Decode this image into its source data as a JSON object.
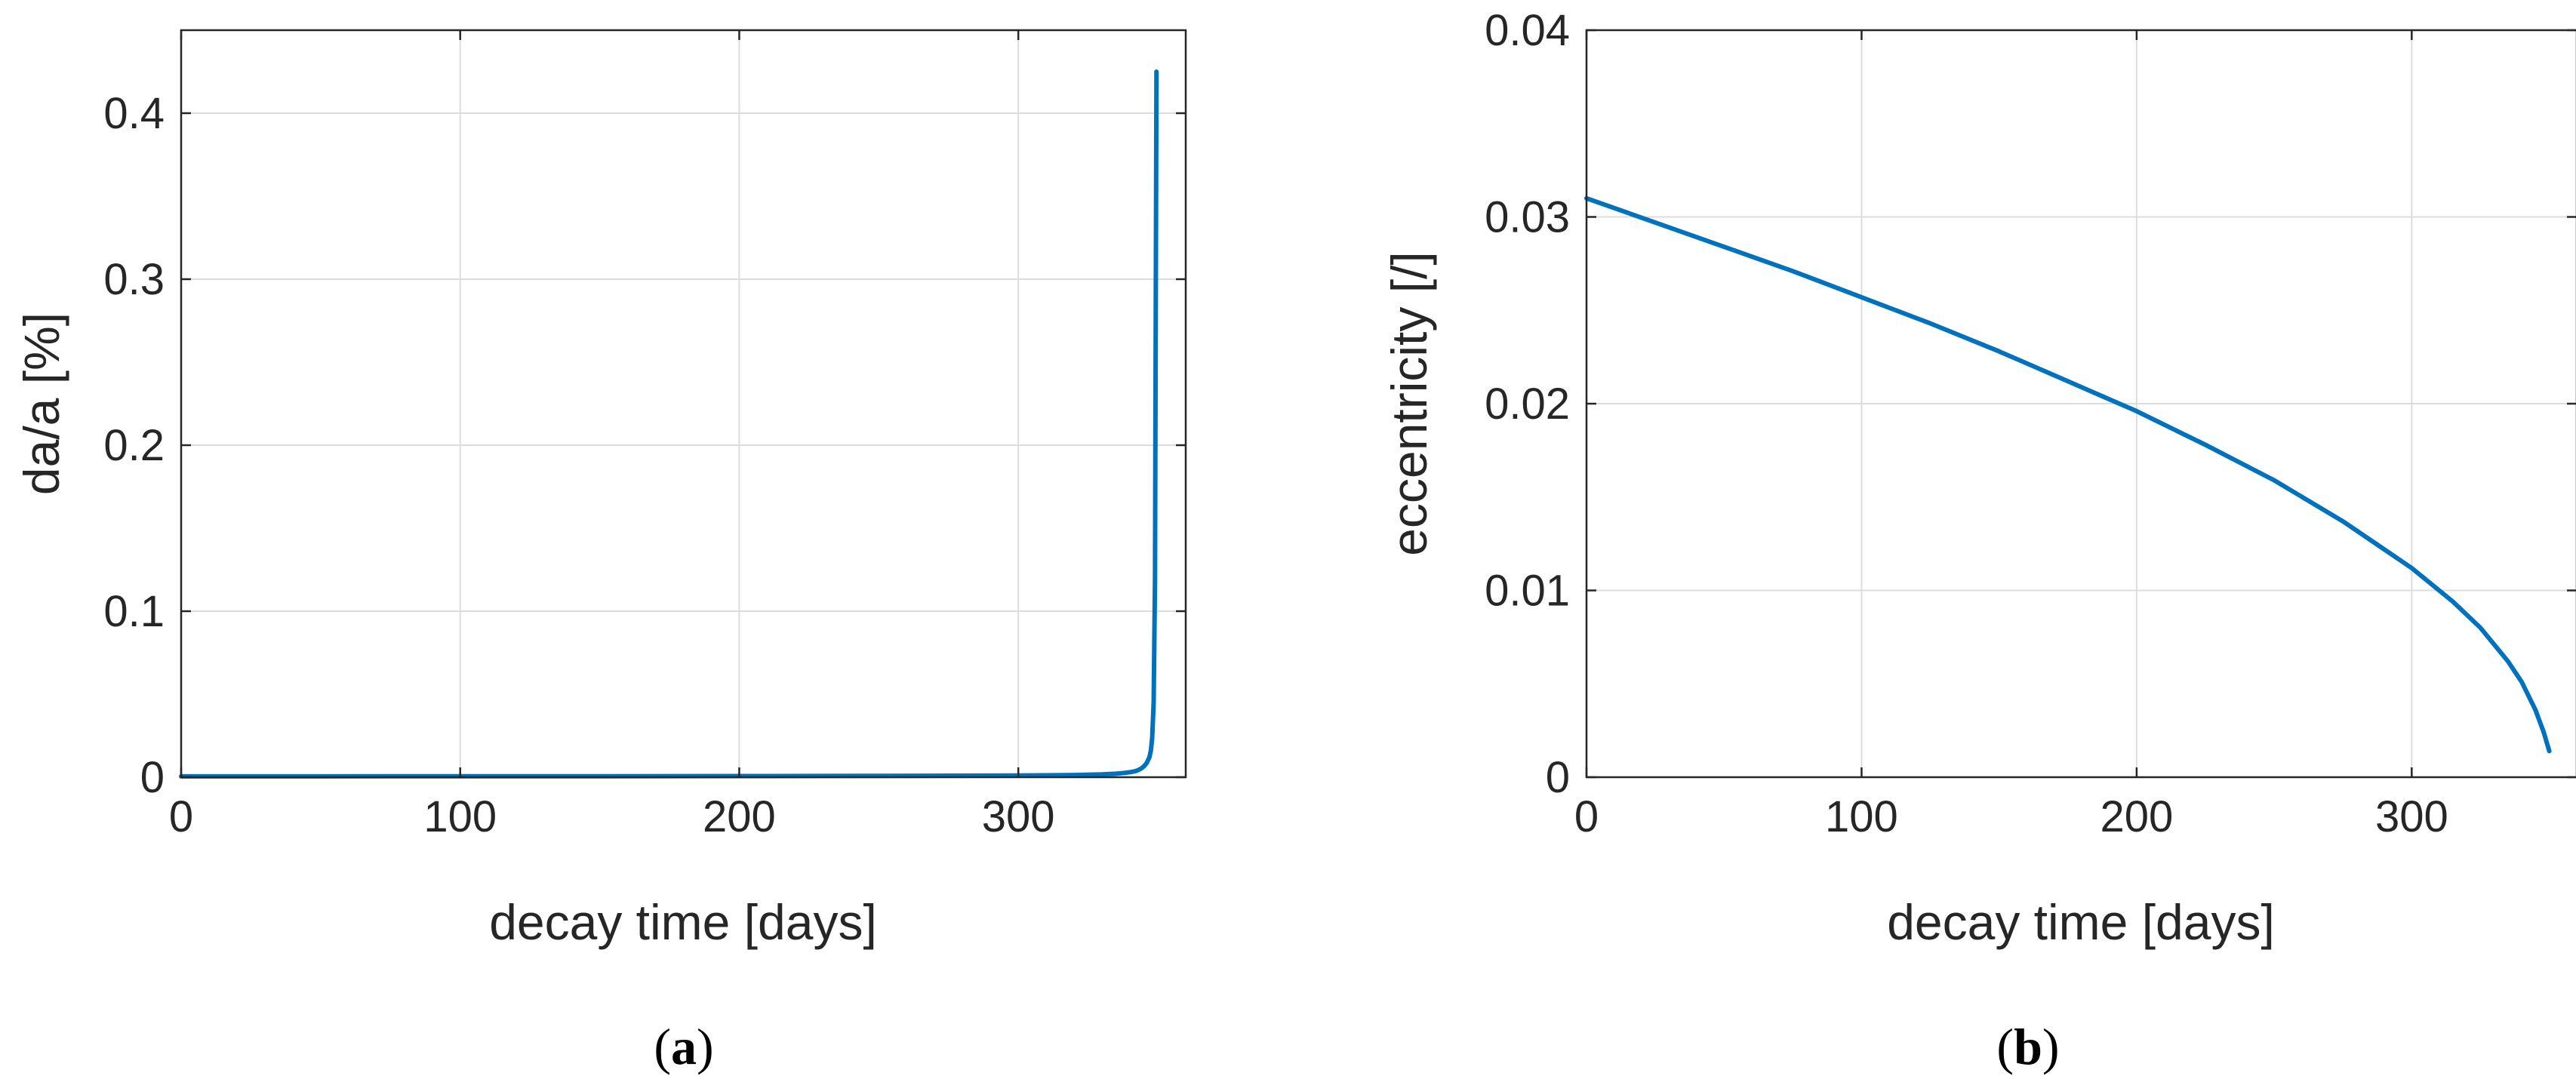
{
  "chart_data": [
    {
      "type": "line",
      "panel_label": "a",
      "xlabel": "decay time [days]",
      "ylabel": "da/a [%]",
      "xlim": [
        0,
        360
      ],
      "ylim": [
        0,
        0.45
      ],
      "xticks": [
        0,
        100,
        200,
        300
      ],
      "yticks": [
        0,
        0.1,
        0.2,
        0.3,
        0.4
      ],
      "xtick_labels": [
        "0",
        "100",
        "200",
        "300"
      ],
      "ytick_labels": [
        "0",
        "0.1",
        "0.2",
        "0.3",
        "0.4"
      ],
      "grid": true,
      "series_color": "#0072BD",
      "x": [
        0,
        50,
        100,
        150,
        200,
        250,
        300,
        320,
        330,
        335,
        338,
        340,
        342,
        343,
        344,
        345,
        346,
        347,
        347.5,
        348,
        348.5,
        349,
        349.3,
        349.5
      ],
      "y": [
        0.0005,
        0.0005,
        0.0006,
        0.0006,
        0.0007,
        0.0008,
        0.001,
        0.0013,
        0.0017,
        0.0021,
        0.0026,
        0.003,
        0.0037,
        0.0043,
        0.0052,
        0.0065,
        0.0085,
        0.012,
        0.016,
        0.024,
        0.045,
        0.12,
        0.3,
        0.425
      ]
    },
    {
      "type": "line",
      "panel_label": "b",
      "xlabel": "decay time [days]",
      "ylabel": "eccentricity [/]",
      "xlim": [
        0,
        360
      ],
      "ylim": [
        0,
        0.04
      ],
      "xticks": [
        0,
        100,
        200,
        300
      ],
      "yticks": [
        0,
        0.01,
        0.02,
        0.03,
        0.04
      ],
      "xtick_labels": [
        "0",
        "100",
        "200",
        "300"
      ],
      "ytick_labels": [
        "0",
        "0.01",
        "0.02",
        "0.03",
        "0.04"
      ],
      "grid": true,
      "series_color": "#0072BD",
      "x": [
        0,
        25,
        50,
        75,
        100,
        125,
        150,
        175,
        200,
        225,
        250,
        275,
        300,
        315,
        325,
        335,
        340,
        345,
        348,
        350
      ],
      "y": [
        0.031,
        0.0297,
        0.0284,
        0.0271,
        0.0257,
        0.0243,
        0.0228,
        0.0212,
        0.0196,
        0.0178,
        0.0159,
        0.0137,
        0.0112,
        0.0094,
        0.008,
        0.0062,
        0.0051,
        0.0036,
        0.0024,
        0.0014
      ]
    }
  ]
}
